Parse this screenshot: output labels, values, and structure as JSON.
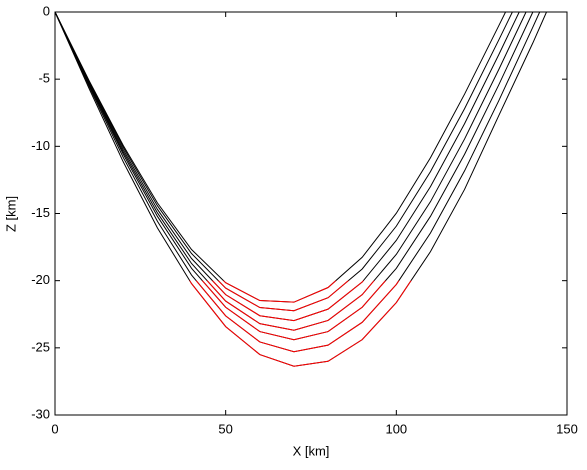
{
  "chart_data": {
    "type": "line",
    "xlabel": "X [km]",
    "ylabel": "Z [km]",
    "xlim": [
      0,
      150
    ],
    "xticks": [
      0,
      50,
      100,
      150
    ],
    "ylim": [
      -30,
      0
    ],
    "yticks": [
      -30,
      -25,
      -20,
      -15,
      -10,
      -5,
      0
    ],
    "color": "#000000",
    "highlight_below": -20,
    "highlight_color": "#ff0000",
    "series": [
      {
        "x": [
          0,
          10,
          20,
          30,
          40,
          50,
          60,
          70,
          80,
          90,
          100,
          110,
          120,
          130,
          132
        ],
        "values": [
          0,
          -5.12,
          -9.94,
          -14.21,
          -17.68,
          -20.15,
          -21.48,
          -21.6,
          -20.51,
          -18.26,
          -14.98,
          -10.85,
          -6.11,
          -1.03,
          0
        ]
      },
      {
        "x": [
          0,
          10,
          20,
          30,
          40,
          50,
          60,
          70,
          80,
          90,
          100,
          110,
          120,
          130,
          134
        ],
        "values": [
          0,
          -5.18,
          -10.08,
          -14.42,
          -17.98,
          -20.55,
          -22.0,
          -22.24,
          -21.27,
          -19.13,
          -15.94,
          -11.88,
          -7.19,
          -2.09,
          0
        ]
      },
      {
        "x": [
          0,
          10,
          20,
          30,
          40,
          50,
          60,
          70,
          80,
          90,
          100,
          110,
          120,
          130,
          136
        ],
        "values": [
          0,
          -5.27,
          -10.25,
          -14.69,
          -18.35,
          -21.04,
          -22.61,
          -22.97,
          -22.12,
          -20.1,
          -17.0,
          -13.0,
          -8.31,
          -3.18,
          0
        ]
      },
      {
        "x": [
          0,
          10,
          20,
          30,
          40,
          50,
          60,
          70,
          80,
          90,
          100,
          110,
          120,
          130,
          138
        ],
        "values": [
          0,
          -5.35,
          -10.42,
          -14.95,
          -18.72,
          -21.52,
          -23.2,
          -23.69,
          -22.96,
          -21.04,
          -18.04,
          -14.12,
          -9.45,
          -4.29,
          0
        ]
      },
      {
        "x": [
          0,
          10,
          20,
          30,
          40,
          50,
          60,
          70,
          80,
          90,
          100,
          110,
          120,
          130,
          140
        ],
        "values": [
          0,
          -5.43,
          -10.59,
          -15.21,
          -19.08,
          -21.98,
          -23.79,
          -24.4,
          -23.79,
          -21.98,
          -19.08,
          -15.21,
          -10.59,
          -5.43,
          0
        ]
      },
      {
        "x": [
          0,
          10,
          20,
          30,
          40,
          50,
          60,
          70,
          80,
          90,
          100,
          110,
          120,
          130,
          140,
          142
        ],
        "values": [
          0,
          -5.55,
          -10.83,
          -15.58,
          -19.58,
          -22.62,
          -24.56,
          -25.29,
          -24.8,
          -23.1,
          -20.28,
          -16.45,
          -11.82,
          -6.61,
          -1.12,
          0
        ]
      },
      {
        "x": [
          0,
          10,
          20,
          30,
          40,
          50,
          60,
          70,
          80,
          90,
          100,
          110,
          120,
          130,
          140,
          144
        ],
        "values": [
          0,
          -5.71,
          -11.16,
          -16.07,
          -20.22,
          -23.42,
          -25.5,
          -26.37,
          -26.0,
          -24.39,
          -21.63,
          -17.84,
          -13.2,
          -7.72,
          -2.3,
          0
        ]
      }
    ]
  }
}
